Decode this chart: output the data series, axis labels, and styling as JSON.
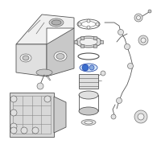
{
  "bg_color": "#ffffff",
  "fig_width": 2.0,
  "fig_height": 2.0,
  "dpi": 100,
  "line_color": "#555555",
  "thin_lw": 0.4,
  "med_lw": 0.6,
  "thick_lw": 0.8,
  "blue_color": "#3a6ecc",
  "gray_fill": "#e0e0e0",
  "light_fill": "#f0f0f0",
  "mid_fill": "#c8c8c8"
}
